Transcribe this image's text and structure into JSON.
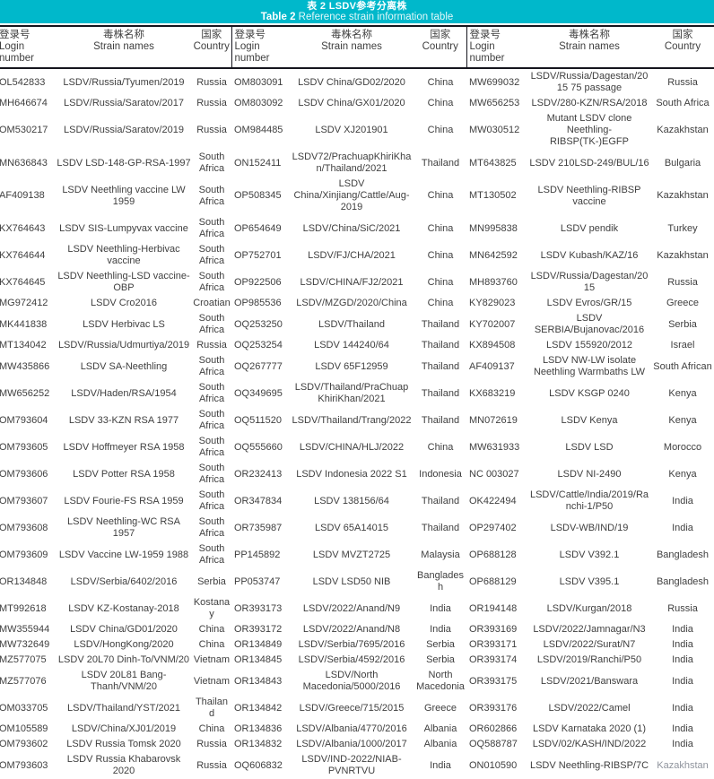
{
  "title": {
    "zh": "表 2 LSDV参考分离株",
    "en_prefix": "Table 2",
    "en_rest": " Reference strain information table"
  },
  "colors": {
    "accent_teal": "#00b8cb",
    "border_black": "#15151d",
    "text_gray": "#3f3f3f"
  },
  "header": {
    "login_zh": "登录号",
    "login_en": "Login number",
    "strain_zh": "毒株名称",
    "strain_en": "Strain names",
    "country_zh": "国家",
    "country_en": "Country"
  },
  "rows": [
    [
      "OL542833",
      "LSDV/Russia/Tyumen/2019",
      "Russia",
      "OM803091",
      "LSDV China/GD02/2020",
      "China",
      "MW699032",
      "LSDV/Russia/Dagestan/2015 75 passage",
      "Russia"
    ],
    [
      "MH646674",
      "LSDV/Russia/Saratov/2017",
      "Russia",
      "OM803092",
      "LSDV China/GX01/2020",
      "China",
      "MW656253",
      "LSDV/280-KZN/RSA/2018",
      "South Africa"
    ],
    [
      "OM530217",
      "LSDV/Russia/Saratov/2019",
      "Russia",
      "OM984485",
      "LSDV XJ201901",
      "China",
      "MW030512",
      "Mutant LSDV clone Neethling-RIBSP(TK-)EGFP",
      "Kazakhstan"
    ],
    [
      "MN636843",
      "LSDV LSD-148-GP-RSA-1997",
      "South Africa",
      "ON152411",
      "LSDV72/PrachuapKhiriKhan/Thailand/2021",
      "Thailand",
      "MT643825",
      "LSDV 210LSD-249/BUL/16",
      "Bulgaria"
    ],
    [
      "AF409138",
      "LSDV Neethling vaccine LW 1959",
      "South Africa",
      "OP508345",
      "LSDV China/Xinjiang/Cattle/Aug-2019",
      "China",
      "MT130502",
      "LSDV Neethling-RIBSP vaccine",
      "Kazakhstan"
    ],
    [
      "KX764643",
      "LSDV SIS-Lumpyvax vaccine",
      "South Africa",
      "OP654649",
      "LSDV/China/SiC/2021",
      "China",
      "MN995838",
      "LSDV pendik",
      "Turkey"
    ],
    [
      "KX764644",
      "LSDV Neethling-Herbivac vaccine",
      "South Africa",
      "OP752701",
      "LSDV/FJ/CHA/2021",
      "China",
      "MN642592",
      "LSDV Kubash/KAZ/16",
      "Kazakhstan"
    ],
    [
      "KX764645",
      "LSDV Neethling-LSD vaccine-OBP",
      "South Africa",
      "OP922506",
      "LSDV/CHINA/FJ2/2021",
      "China",
      "MH893760",
      "LSDV/Russia/Dagestan/2015",
      "Russia"
    ],
    [
      "MG972412",
      "LSDV Cro2016",
      "Croatian",
      "OP985536",
      "LSDV/MZGD/2020/China",
      "China",
      "KY829023",
      "LSDV Evros/GR/15",
      "Greece"
    ],
    [
      "MK441838",
      "LSDV Herbivac LS",
      "South Africa",
      "OQ253250",
      "LSDV/Thailand",
      "Thailand",
      "KY702007",
      "LSDV SERBIA/Bujanovac/2016",
      "Serbia"
    ],
    [
      "MT134042",
      "LSDV/Russia/Udmurtiya/2019",
      "Russia",
      "OQ253254",
      "LSDV 144240/64",
      "Thailand",
      "KX894508",
      "LSDV 155920/2012",
      "Israel"
    ],
    [
      "MW435866",
      "LSDV SA-Neethling",
      "South Africa",
      "OQ267777",
      "LSDV 65F12959",
      "Thailand",
      "AF409137",
      "LSDV NW-LW isolate Neethling Warmbaths LW",
      "South African"
    ],
    [
      "MW656252",
      "LSDV/Haden/RSA/1954",
      "South Africa",
      "OQ349695",
      "LSDV/Thailand/PraChuap KhiriKhan/2021",
      "Thailand",
      "KX683219",
      "LSDV KSGP 0240",
      "Kenya"
    ],
    [
      "OM793604",
      "LSDV 33-KZN RSA 1977",
      "South Africa",
      "OQ511520",
      "LSDV/Thailand/Trang/2022",
      "Thailand",
      "MN072619",
      "LSDV Kenya",
      "Kenya"
    ],
    [
      "OM793605",
      "LSDV Hoffmeyer RSA 1958",
      "South Africa",
      "OQ555660",
      "LSDV/CHINA/HLJ/2022",
      "China",
      "MW631933",
      "LSDV LSD",
      "Morocco"
    ],
    [
      "OM793606",
      "LSDV Potter RSA 1958",
      "South Africa",
      "OR232413",
      "LSDV Indonesia 2022 S1",
      "Indonesia",
      "NC 003027",
      "LSDV NI-2490",
      "Kenya"
    ],
    [
      "OM793607",
      "LSDV Fourie-FS RSA 1959",
      "South Africa",
      "OR347834",
      "LSDV 138156/64",
      "Thailand",
      "OK422494",
      "LSDV/Cattle/India/2019/Ranchi-1/P50",
      "India"
    ],
    [
      "OM793608",
      "LSDV Neethling-WC RSA 1957",
      "South Africa",
      "OR735987",
      "LSDV 65A14015",
      "Thailand",
      "OP297402",
      "LSDV-WB/IND/19",
      "India"
    ],
    [
      "OM793609",
      "LSDV Vaccine LW-1959 1988",
      "South Africa",
      "PP145892",
      "LSDV MVZT2725",
      "Malaysia",
      "OP688128",
      "LSDV V392.1",
      "Bangladesh"
    ],
    [
      "OR134848",
      "LSDV/Serbia/6402/2016",
      "Serbia",
      "PP053747",
      "LSDV LSD50 NIB",
      "Bangladesh",
      "OP688129",
      "LSDV V395.1",
      "Bangladesh"
    ],
    [
      "MT992618",
      "LSDV KZ-Kostanay-2018",
      "Kostanay",
      "OR393173",
      "LSDV/2022/Anand/N9",
      "India",
      "OR194148",
      "LSDV/Kurgan/2018",
      "Russia"
    ],
    [
      "MW355944",
      "LSDV China/GD01/2020",
      "China",
      "OR393172",
      "LSDV/2022/Anand/N8",
      "India",
      "OR393169",
      "LSDV/2022/Jamnagar/N3",
      "India"
    ],
    [
      "MW732649",
      "LSDV/HongKong/2020",
      "China",
      "OR134849",
      "LSDV/Serbia/7695/2016",
      "Serbia",
      "OR393171",
      "LSDV/2022/Surat/N7",
      "India"
    ],
    [
      "MZ577075",
      "LSDV 20L70 Dinh-To/VNM/20",
      "Vietnam",
      "OR134845",
      "LSDV/Serbia/4592/2016",
      "Serbia",
      "OR393174",
      "LSDV/2019/Ranchi/P50",
      "India"
    ],
    [
      "MZ577076",
      "LSDV 20L81 Bang-Thanh/VNM/20",
      "Vietnam",
      "OR134843",
      "LSDV/North Macedonia/5000/2016",
      "North Macedonia",
      "OR393175",
      "LSDV/2021/Banswara",
      "India"
    ],
    [
      "OM033705",
      "LSDV/Thailand/YST/2021",
      "Thailand",
      "OR134842",
      "LSDV/Greece/715/2015",
      "Greece",
      "OR393176",
      "LSDV/2022/Camel",
      "India"
    ],
    [
      "OM105589",
      "LSDV/China/XJ01/2019",
      "China",
      "OR134836",
      "LSDV/Albania/4770/2016",
      "Albania",
      "OR602866",
      "LSDV Karnataka 2020 (1)",
      "India"
    ],
    [
      "OM793602",
      "LSDV Russia Tomsk 2020",
      "Russia",
      "OR134832",
      "LSDV/Albania/1000/2017",
      "Albania",
      "OQ588787",
      "LSDV/02/KASH/IND/2022",
      "India"
    ],
    [
      "OM793603",
      "LSDV Russia Khabarovsk 2020",
      "Russia",
      "OQ606832",
      "LSDV/IND-2022/NIAB-PVNRTVU",
      "India",
      "ON010590",
      "LSDV Neethling-RIBSP/7C",
      "Kazakhstan"
    ]
  ]
}
